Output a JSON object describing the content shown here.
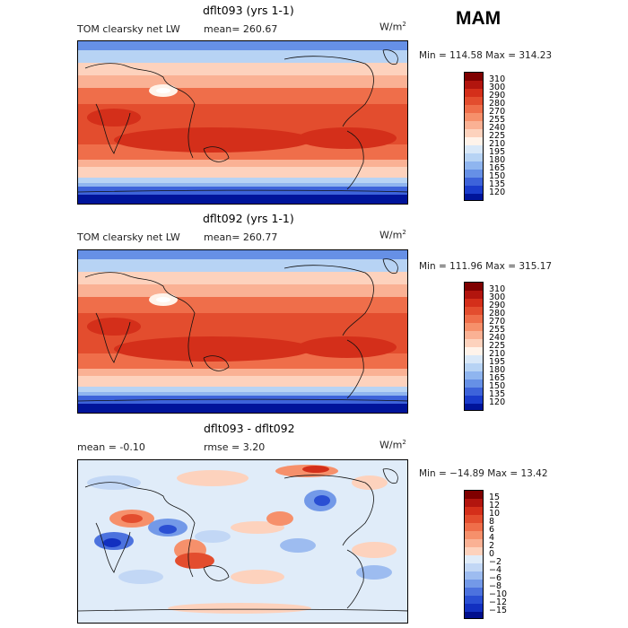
{
  "season_label": "MAM",
  "panels": [
    {
      "title": "dflt093 (yrs 1-1)",
      "left_label": "TOM clearsky net LW",
      "center_label": "mean= 260.67",
      "units": "W/m",
      "units_sup": "2",
      "min_max": "Min = 114.58 Max = 314.23"
    },
    {
      "title": "dflt092 (yrs 1-1)",
      "left_label": "TOM clearsky net LW",
      "center_label": "mean= 260.77",
      "units": "W/m",
      "units_sup": "2",
      "min_max": "Min = 111.96 Max = 315.17"
    },
    {
      "title": "dflt093 - dflt092",
      "left_label": "mean =  -0.10",
      "center_label": "rmse =    3.20",
      "units": "W/m",
      "units_sup": "2",
      "min_max": "Min = −14.89 Max =  13.42"
    }
  ],
  "colorbars": [
    {
      "ticks": [
        "310",
        "300",
        "290",
        "280",
        "270",
        "255",
        "240",
        "225",
        "210",
        "195",
        "180",
        "165",
        "150",
        "135",
        "120"
      ],
      "colors": [
        "#7f0000",
        "#b2150e",
        "#d42f1a",
        "#e34d2e",
        "#ef6e4a",
        "#f6906b",
        "#fab194",
        "#fdd2bd",
        "#fff3ea",
        "#d9e8f8",
        "#b7d3f4",
        "#8fb5ef",
        "#6690e6",
        "#3d63da",
        "#1a3ccc",
        "#00149a"
      ]
    },
    {
      "ticks": [
        "310",
        "300",
        "290",
        "280",
        "270",
        "255",
        "240",
        "225",
        "210",
        "195",
        "180",
        "165",
        "150",
        "135",
        "120"
      ],
      "colors": [
        "#7f0000",
        "#b2150e",
        "#d42f1a",
        "#e34d2e",
        "#ef6e4a",
        "#f6906b",
        "#fab194",
        "#fdd2bd",
        "#fff3ea",
        "#d9e8f8",
        "#b7d3f4",
        "#8fb5ef",
        "#6690e6",
        "#3d63da",
        "#1a3ccc",
        "#00149a"
      ]
    },
    {
      "ticks": [
        "15",
        "12",
        "10",
        "8",
        "6",
        "4",
        "2",
        "0",
        "−2",
        "−4",
        "−6",
        "−8",
        "−10",
        "−12",
        "−15"
      ],
      "colors": [
        "#7f0000",
        "#b2150e",
        "#d42f1a",
        "#e34d2e",
        "#ef6e4a",
        "#f6906b",
        "#fab194",
        "#fdd2bd",
        "#e0ecf9",
        "#c2d7f5",
        "#9dbcf0",
        "#7399e8",
        "#4c72de",
        "#2a4fd3",
        "#1230c0",
        "#000e8c"
      ]
    }
  ],
  "chart_data": [
    {
      "type": "heatmap",
      "title": "dflt093 (yrs 1-1)",
      "variable": "TOM clearsky net LW",
      "units": "W/m2",
      "mean": 260.67,
      "min": 114.58,
      "max": 314.23,
      "contour_levels": [
        120,
        135,
        150,
        165,
        180,
        195,
        210,
        225,
        240,
        255,
        270,
        280,
        290,
        300,
        310
      ]
    },
    {
      "type": "heatmap",
      "title": "dflt092 (yrs 1-1)",
      "variable": "TOM clearsky net LW",
      "units": "W/m2",
      "mean": 260.77,
      "min": 111.96,
      "max": 315.17,
      "contour_levels": [
        120,
        135,
        150,
        165,
        180,
        195,
        210,
        225,
        240,
        255,
        270,
        280,
        290,
        300,
        310
      ]
    },
    {
      "type": "heatmap",
      "title": "dflt093 - dflt092",
      "units": "W/m2",
      "mean": -0.1,
      "rmse": 3.2,
      "min": -14.89,
      "max": 13.42,
      "contour_levels": [
        -15,
        -12,
        -10,
        -8,
        -6,
        -4,
        -2,
        0,
        2,
        4,
        6,
        8,
        10,
        12,
        15
      ]
    }
  ]
}
